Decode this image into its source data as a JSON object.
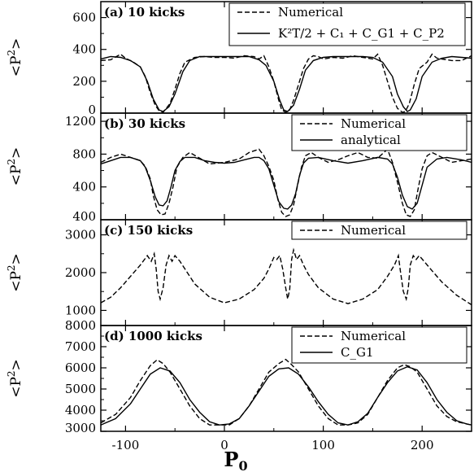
{
  "figure": {
    "xlabel": "P",
    "xlabel_sub": "0",
    "ylabel_main": "<P",
    "ylabel_sup": "2",
    "ylabel_end": ">",
    "x_ticks": [
      -100,
      0,
      100,
      200
    ],
    "xlim": [
      -125,
      250
    ]
  },
  "chart_data": [
    {
      "type": "line",
      "title": "(a) 10 kicks",
      "ylim": [
        0,
        700
      ],
      "y_ticks": [
        0,
        200,
        400,
        600
      ],
      "series": [
        {
          "name": "Numerical",
          "style": "dashed",
          "x": [
            -125,
            -115,
            -105,
            -100,
            -92,
            -85,
            -80,
            -75,
            -70,
            -66,
            -62,
            -55,
            -50,
            -45,
            -40,
            -30,
            -20,
            -10,
            0,
            10,
            20,
            30,
            35,
            40,
            45,
            50,
            55,
            58,
            62,
            66,
            70,
            75,
            80,
            85,
            90,
            95,
            100,
            110,
            120,
            130,
            140,
            150,
            155,
            160,
            165,
            170,
            175,
            180,
            183,
            187,
            192,
            197,
            205,
            210,
            215,
            220,
            230,
            240,
            250
          ],
          "y": [
            330,
            335,
            370,
            345,
            320,
            290,
            230,
            130,
            50,
            15,
            5,
            60,
            150,
            250,
            320,
            350,
            355,
            350,
            350,
            345,
            360,
            355,
            340,
            360,
            290,
            200,
            80,
            20,
            5,
            20,
            80,
            180,
            280,
            340,
            360,
            355,
            340,
            350,
            345,
            360,
            350,
            340,
            370,
            300,
            200,
            100,
            30,
            5,
            10,
            60,
            180,
            280,
            320,
            370,
            345,
            340,
            330,
            330,
            360
          ]
        },
        {
          "name": "K^2T/2 + C1 + CG1 + CP2",
          "style": "solid",
          "x": [
            -125,
            -115,
            -105,
            -95,
            -85,
            -78,
            -72,
            -66,
            -62,
            -56,
            -50,
            -42,
            -35,
            -25,
            -15,
            0,
            15,
            25,
            35,
            42,
            50,
            56,
            60,
            64,
            70,
            76,
            82,
            90,
            100,
            110,
            125,
            140,
            150,
            160,
            170,
            175,
            181,
            185,
            188,
            194,
            200,
            210,
            220,
            230,
            240,
            250
          ],
          "y": [
            340,
            355,
            350,
            330,
            290,
            200,
            90,
            20,
            10,
            40,
            120,
            260,
            330,
            355,
            355,
            355,
            355,
            355,
            335,
            300,
            200,
            80,
            20,
            10,
            50,
            150,
            270,
            330,
            350,
            355,
            355,
            355,
            350,
            320,
            230,
            120,
            40,
            10,
            20,
            90,
            230,
            320,
            345,
            355,
            350,
            345
          ]
        }
      ],
      "legend": [
        "Numerical",
        "K²T/2 + C₁ + C_G1 + C_P2"
      ]
    },
    {
      "type": "line",
      "title": "(b) 30 kicks",
      "ylim": [
        0,
        1300
      ],
      "y_ticks": [
        400,
        800,
        1200
      ],
      "bottom_tick_label": "400",
      "series": [
        {
          "name": "Numerical",
          "style": "dashed",
          "x": [
            -125,
            -115,
            -105,
            -95,
            -85,
            -80,
            -75,
            -72,
            -68,
            -64,
            -60,
            -56,
            -52,
            -48,
            -42,
            -35,
            -25,
            -15,
            0,
            15,
            25,
            35,
            40,
            45,
            50,
            54,
            58,
            62,
            66,
            70,
            74,
            78,
            82,
            88,
            95,
            105,
            115,
            125,
            135,
            145,
            155,
            165,
            170,
            175,
            180,
            184,
            188,
            192,
            196,
            200,
            205,
            210,
            220,
            230,
            240,
            250
          ],
          "y": [
            700,
            760,
            800,
            760,
            720,
            650,
            500,
            300,
            120,
            60,
            70,
            200,
            400,
            640,
            760,
            820,
            750,
            680,
            700,
            740,
            820,
            860,
            780,
            650,
            480,
            250,
            90,
            40,
            60,
            180,
            420,
            640,
            780,
            820,
            760,
            700,
            730,
            780,
            820,
            760,
            750,
            860,
            700,
            460,
            200,
            60,
            40,
            120,
            380,
            620,
            780,
            820,
            760,
            700,
            720,
            740
          ]
        },
        {
          "name": "analytical",
          "style": "solid",
          "x": [
            -125,
            -115,
            -105,
            -95,
            -85,
            -80,
            -75,
            -70,
            -66,
            -62,
            -58,
            -54,
            -50,
            -45,
            -40,
            -30,
            -20,
            -10,
            0,
            10,
            20,
            30,
            35,
            40,
            45,
            50,
            55,
            60,
            64,
            68,
            72,
            76,
            80,
            85,
            95,
            110,
            125,
            140,
            155,
            165,
            170,
            175,
            180,
            185,
            190,
            195,
            200,
            205,
            215,
            225,
            240,
            250
          ],
          "y": [
            680,
            720,
            760,
            760,
            720,
            640,
            480,
            280,
            180,
            170,
            230,
            400,
            600,
            710,
            760,
            760,
            720,
            700,
            690,
            700,
            730,
            760,
            760,
            720,
            620,
            420,
            220,
            140,
            130,
            180,
            320,
            540,
            690,
            750,
            760,
            720,
            690,
            720,
            760,
            740,
            680,
            520,
            300,
            160,
            130,
            200,
            420,
            640,
            740,
            760,
            730,
            700
          ]
        }
      ],
      "legend": [
        "Numerical",
        "analytical"
      ]
    },
    {
      "type": "line",
      "title": "(c) 150 kicks",
      "ylim": [
        600,
        3400
      ],
      "y_ticks": [
        1000,
        2000,
        3000
      ],
      "series": [
        {
          "name": "Numerical",
          "style": "dashed",
          "x": [
            -125,
            -115,
            -105,
            -95,
            -85,
            -78,
            -74,
            -71,
            -69,
            -67,
            -65,
            -62,
            -59,
            -56,
            -53,
            -50,
            -45,
            -40,
            -30,
            -15,
            0,
            15,
            30,
            40,
            45,
            50,
            53,
            56,
            59,
            62,
            64,
            66,
            68,
            70,
            73,
            76,
            80,
            85,
            95,
            110,
            125,
            140,
            155,
            165,
            172,
            176,
            178,
            181,
            184,
            186,
            188,
            191,
            194,
            197,
            202,
            210,
            220,
            235,
            250
          ],
          "y": [
            1200,
            1350,
            1600,
            1900,
            2200,
            2450,
            2300,
            2500,
            2100,
            1500,
            1300,
            1600,
            2200,
            2450,
            2300,
            2450,
            2300,
            2100,
            1700,
            1350,
            1200,
            1300,
            1550,
            1850,
            2100,
            2400,
            2350,
            2450,
            2100,
            1600,
            1300,
            1550,
            2350,
            2600,
            2350,
            2450,
            2200,
            1950,
            1600,
            1300,
            1180,
            1300,
            1550,
            1900,
            2200,
            2450,
            2050,
            1500,
            1300,
            1600,
            2200,
            2450,
            2350,
            2450,
            2300,
            2050,
            1750,
            1400,
            1150
          ]
        }
      ],
      "legend": [
        "Numerical"
      ]
    },
    {
      "type": "line",
      "title": "(d) 1000 kicks",
      "ylim": [
        3000,
        8000
      ],
      "y_ticks": [
        3000,
        4000,
        5000,
        6000,
        7000,
        8000
      ],
      "series": [
        {
          "name": "Numerical",
          "style": "dashed",
          "x": [
            -125,
            -110,
            -95,
            -85,
            -75,
            -68,
            -62,
            -55,
            -45,
            -35,
            -25,
            -15,
            -5,
            5,
            15,
            25,
            35,
            45,
            55,
            62,
            68,
            75,
            85,
            95,
            105,
            115,
            125,
            135,
            145,
            155,
            165,
            175,
            182,
            188,
            195,
            205,
            215,
            225,
            235,
            245,
            250
          ],
          "y": [
            3400,
            3800,
            4600,
            5400,
            6100,
            6380,
            6200,
            5800,
            5000,
            4200,
            3600,
            3300,
            3300,
            3300,
            3600,
            4200,
            5000,
            5800,
            6200,
            6400,
            6150,
            5800,
            5000,
            4200,
            3600,
            3300,
            3300,
            3400,
            3800,
            4600,
            5400,
            6000,
            6150,
            6050,
            5800,
            5000,
            4200,
            3700,
            3450,
            3350,
            3300
          ]
        },
        {
          "name": "C_G1",
          "style": "solid",
          "x": [
            -125,
            -110,
            -95,
            -85,
            -75,
            -65,
            -55,
            -45,
            -35,
            -25,
            -15,
            -5,
            5,
            15,
            25,
            35,
            45,
            55,
            65,
            75,
            85,
            95,
            105,
            115,
            125,
            135,
            145,
            155,
            165,
            175,
            185,
            195,
            205,
            215,
            225,
            235,
            245,
            250
          ],
          "y": [
            3300,
            3600,
            4300,
            5000,
            5700,
            6000,
            5850,
            5300,
            4500,
            3900,
            3450,
            3300,
            3350,
            3600,
            4200,
            4900,
            5600,
            5950,
            6000,
            5700,
            5100,
            4400,
            3800,
            3400,
            3300,
            3450,
            3850,
            4600,
            5300,
            5850,
            6050,
            5900,
            5300,
            4500,
            3900,
            3500,
            3350,
            3300
          ]
        }
      ],
      "legend": [
        "Numerical",
        "C_G1"
      ]
    }
  ]
}
